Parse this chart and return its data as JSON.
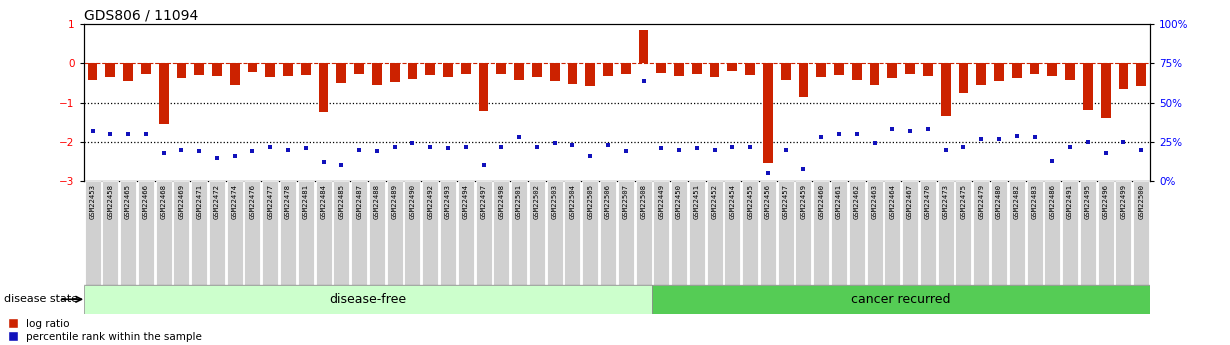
{
  "title": "GDS806 / 11094",
  "samples": [
    "GSM22453",
    "GSM22458",
    "GSM22465",
    "GSM22466",
    "GSM22468",
    "GSM22469",
    "GSM22471",
    "GSM22472",
    "GSM22474",
    "GSM22476",
    "GSM22477",
    "GSM22478",
    "GSM22481",
    "GSM22484",
    "GSM22485",
    "GSM22487",
    "GSM22488",
    "GSM22489",
    "GSM22490",
    "GSM22492",
    "GSM22493",
    "GSM22494",
    "GSM22497",
    "GSM22498",
    "GSM22501",
    "GSM22502",
    "GSM22503",
    "GSM22504",
    "GSM22505",
    "GSM22506",
    "GSM22507",
    "GSM22508",
    "GSM22449",
    "GSM22450",
    "GSM22451",
    "GSM22452",
    "GSM22454",
    "GSM22455",
    "GSM22456",
    "GSM22457",
    "GSM22459",
    "GSM22460",
    "GSM22461",
    "GSM22462",
    "GSM22463",
    "GSM22464",
    "GSM22467",
    "GSM22470",
    "GSM22473",
    "GSM22475",
    "GSM22479",
    "GSM22480",
    "GSM22482",
    "GSM22483",
    "GSM22486",
    "GSM22491",
    "GSM22495",
    "GSM22496",
    "GSM22499",
    "GSM22500"
  ],
  "log_ratio": [
    -0.42,
    -0.35,
    -0.45,
    -0.28,
    -1.55,
    -0.38,
    -0.3,
    -0.32,
    -0.55,
    -0.22,
    -0.35,
    -0.32,
    -0.3,
    -1.25,
    -0.5,
    -0.28,
    -0.55,
    -0.48,
    -0.4,
    -0.3,
    -0.35,
    -0.28,
    -1.22,
    -0.28,
    -0.42,
    -0.35,
    -0.45,
    -0.52,
    -0.58,
    -0.32,
    -0.28,
    0.85,
    -0.25,
    -0.32,
    -0.28,
    -0.35,
    -0.2,
    -0.3,
    -2.55,
    -0.42,
    -0.85,
    -0.35,
    -0.3,
    -0.42,
    -0.55,
    -0.38,
    -0.28,
    -0.32,
    -1.35,
    -0.75,
    -0.55,
    -0.45,
    -0.38,
    -0.28,
    -0.32,
    -0.42,
    -1.18,
    -1.38,
    -0.65,
    -0.58
  ],
  "percentile_rank": [
    32,
    30,
    30,
    30,
    18,
    20,
    19,
    15,
    16,
    19,
    22,
    20,
    21,
    12,
    10,
    20,
    19,
    22,
    24,
    22,
    21,
    22,
    10,
    22,
    28,
    22,
    24,
    23,
    16,
    23,
    19,
    64,
    21,
    20,
    21,
    20,
    22,
    22,
    5,
    20,
    8,
    28,
    30,
    30,
    24,
    33,
    32,
    33,
    20,
    22,
    27,
    27,
    29,
    28,
    13,
    22,
    25,
    18,
    25,
    20
  ],
  "disease_free_count": 32,
  "cancer_recurred_count": 28,
  "bar_color": "#cc2200",
  "dot_color": "#1111bb",
  "ylim_left": [
    -3,
    1
  ],
  "ylim_right": [
    0,
    100
  ],
  "yticks_left": [
    -3,
    -2,
    -1,
    0,
    1
  ],
  "yticks_right": [
    0,
    25,
    50,
    75,
    100
  ],
  "disease_free_color": "#ccffcc",
  "cancer_recurred_color": "#55cc55",
  "band_label_disease_free": "disease-free",
  "band_label_cancer": "cancer recurred",
  "legend_logratio": "log ratio",
  "legend_percentile": "percentile rank within the sample",
  "disease_state_label": "disease state",
  "bar_width": 0.55
}
